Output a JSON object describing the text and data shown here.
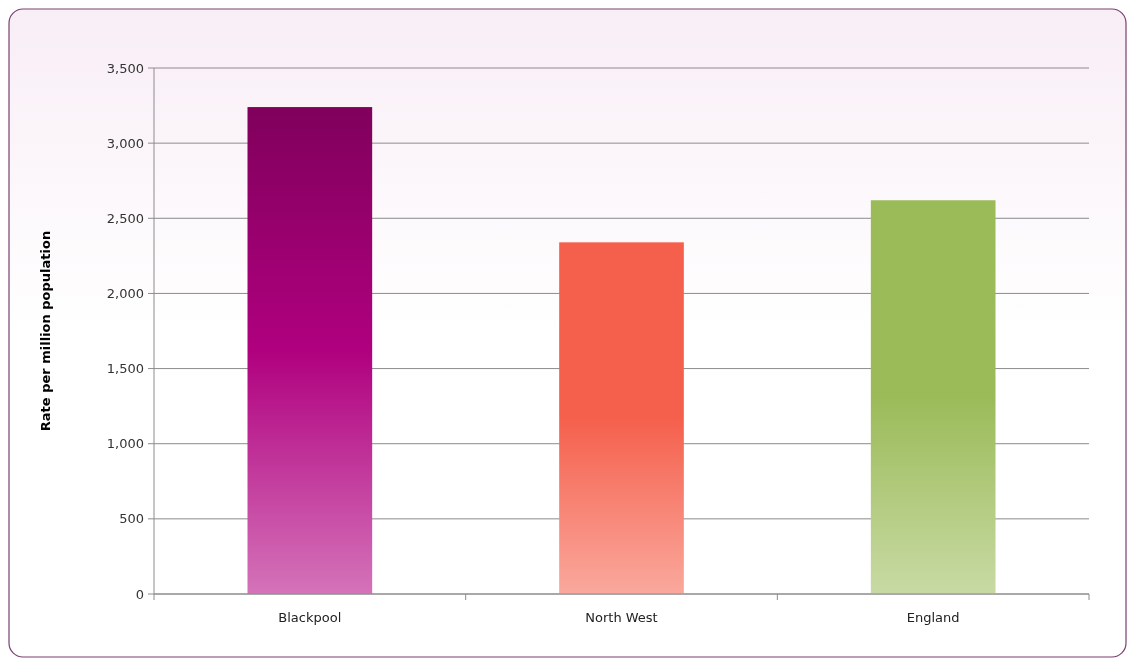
{
  "chart_data": {
    "type": "bar",
    "ylabel": "Rate per million population",
    "categories": [
      "Blackpool",
      "North West",
      "England"
    ],
    "values": [
      3240,
      2340,
      2620
    ],
    "colors": [
      "#b0007f",
      "#f5604c",
      "#9bbb59"
    ],
    "ylim": [
      0,
      3500
    ],
    "yticks": [
      {
        "value": 0,
        "label": "0"
      },
      {
        "value": 500,
        "label": "500"
      },
      {
        "value": 1000,
        "label": "1,000"
      },
      {
        "value": 1500,
        "label": "1,500"
      },
      {
        "value": 2000,
        "label": "2,000"
      },
      {
        "value": 2500,
        "label": "2,500"
      },
      {
        "value": 3000,
        "label": "3,000"
      },
      {
        "value": 3500,
        "label": "3,500"
      }
    ],
    "grid": "y"
  }
}
